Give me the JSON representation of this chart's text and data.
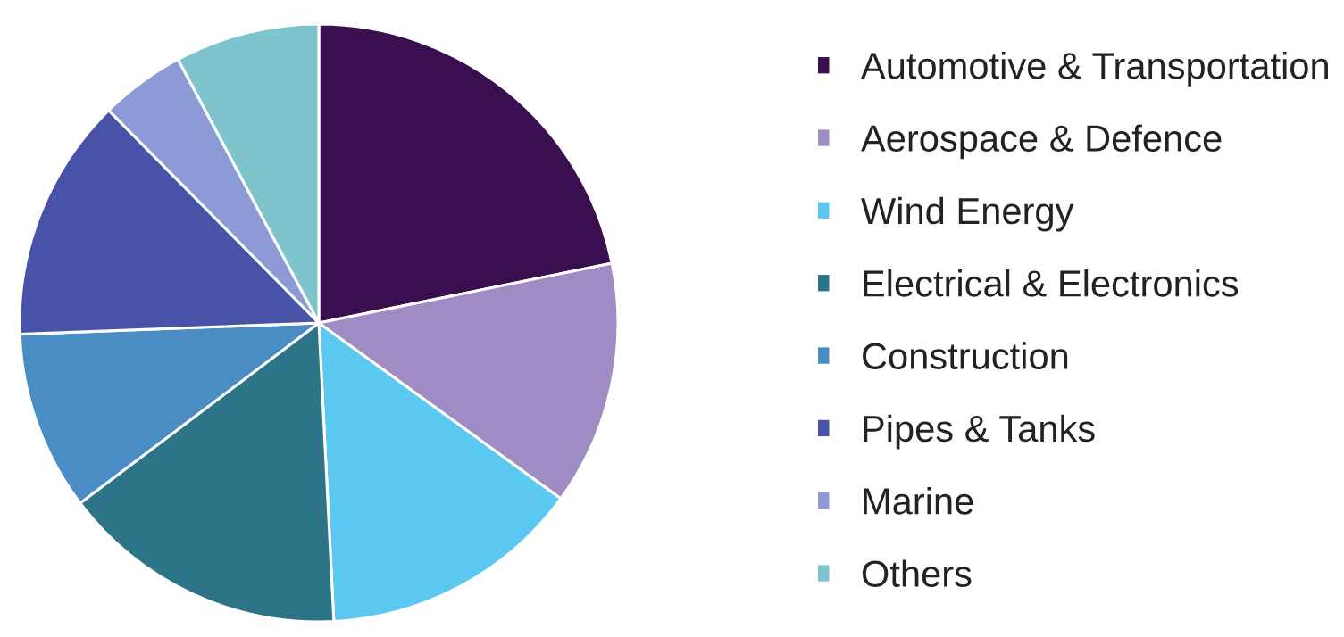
{
  "chart_data": {
    "type": "pie",
    "categories": [
      "Automotive & Transportation",
      "Aerospace & Defence",
      "Wind Energy",
      "Electrical & Electronics",
      "Construction",
      "Pipes & Tanks",
      "Marine",
      "Others"
    ],
    "values": [
      21.8,
      13.2,
      14.2,
      15.5,
      9.7,
      13.2,
      4.6,
      7.8
    ],
    "colors": [
      "#3a0f4f",
      "#a08cc4",
      "#5bc8f2",
      "#2e7489",
      "#4a8cc4",
      "#4853a8",
      "#8e9ad6",
      "#7fc4cc"
    ],
    "legend": "right"
  }
}
